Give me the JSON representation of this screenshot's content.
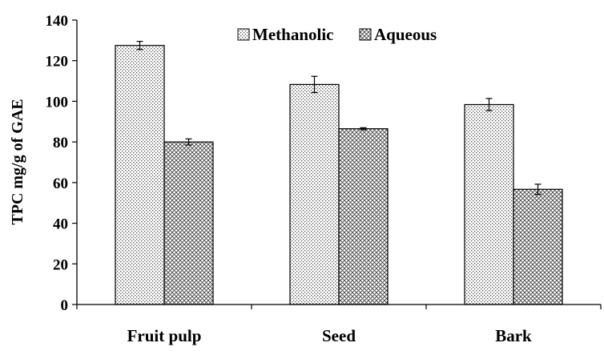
{
  "chart_data": {
    "type": "bar",
    "title": "",
    "xlabel": "",
    "ylabel": "TPC mg/g of GAE",
    "categories": [
      "Fruit pulp",
      "Seed",
      "Bark"
    ],
    "series": [
      {
        "name": "Methanolic",
        "values": [
          127.5,
          108.3,
          98.4
        ],
        "errors": [
          2.0,
          4.0,
          3.0
        ],
        "pattern": "dots"
      },
      {
        "name": "Aqueous",
        "values": [
          80.0,
          86.5,
          56.7
        ],
        "errors": [
          1.5,
          0.5,
          2.5
        ],
        "pattern": "crosshatch"
      }
    ],
    "ylim": [
      0,
      140
    ],
    "yticks": [
      0,
      20,
      40,
      60,
      80,
      100,
      120,
      140
    ],
    "grid": false,
    "legend_position": "top-right"
  }
}
